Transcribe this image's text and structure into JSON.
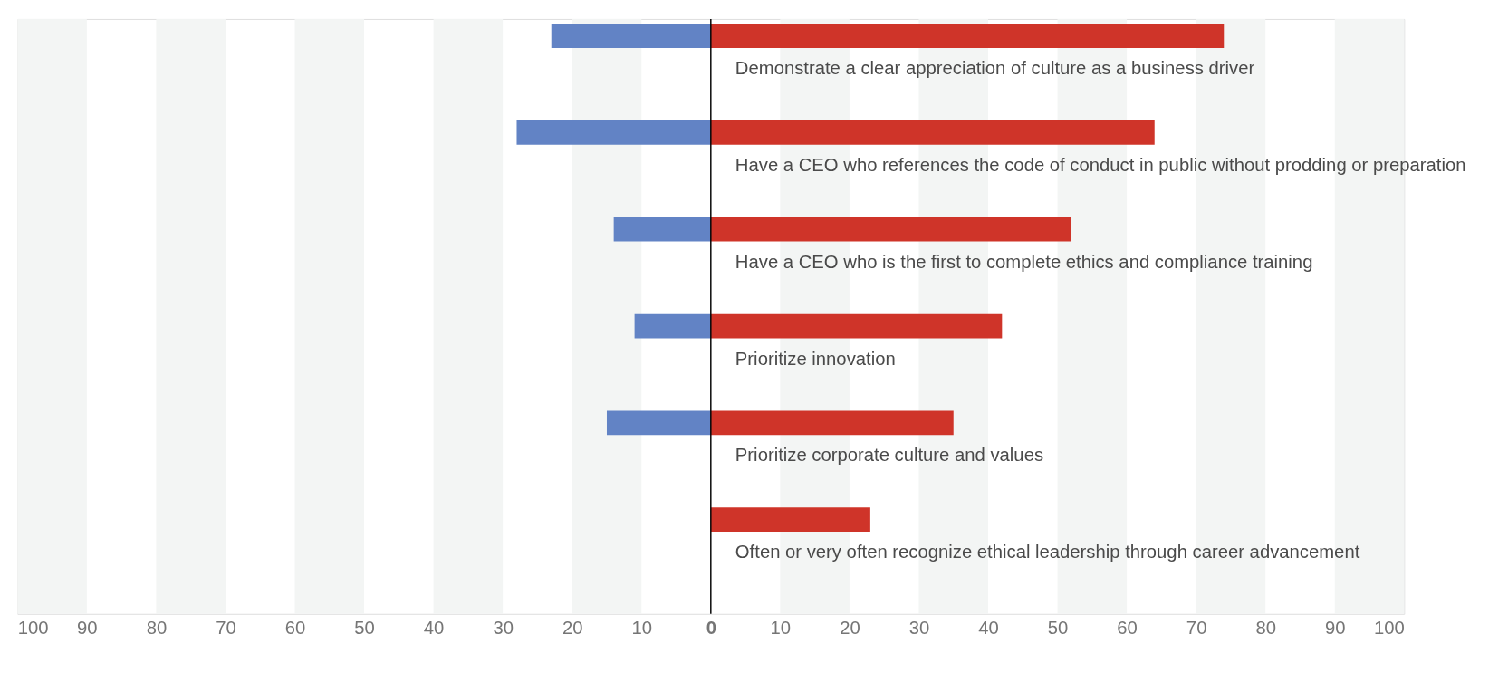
{
  "chart_data": {
    "type": "bar",
    "orientation": "horizontal",
    "categories": [
      "Demonstrate a clear appreciation of culture as a business driver",
      "Have a CEO who references the code of conduct in public without prodding or preparation",
      "Have a CEO who is the first to complete ethics and compliance training",
      "Prioritize innovation",
      "Prioritize corporate culture and values",
      "Often or very often recognize ethical leadership through career advancement"
    ],
    "series": [
      {
        "color": "#cf3429",
        "values": [
          74,
          64,
          52,
          42,
          35,
          23
        ]
      },
      {
        "color": "#6283c5",
        "values": [
          -23,
          -28,
          -14,
          -11,
          -15,
          null
        ]
      }
    ],
    "xlim": [
      -100,
      100
    ],
    "xticks": [
      {
        "value": -100,
        "label": "100"
      },
      {
        "value": -90,
        "label": "90"
      },
      {
        "value": -80,
        "label": "80"
      },
      {
        "value": -70,
        "label": "70"
      },
      {
        "value": -60,
        "label": "60"
      },
      {
        "value": -50,
        "label": "50"
      },
      {
        "value": -40,
        "label": "40"
      },
      {
        "value": -30,
        "label": "30"
      },
      {
        "value": -20,
        "label": "20"
      },
      {
        "value": -10,
        "label": "10"
      },
      0,
      10,
      20,
      30,
      40,
      50,
      60,
      70,
      80,
      90,
      100
    ],
    "ref_lines": [
      {
        "axis": "x",
        "value": 0,
        "color": "#000000"
      }
    ],
    "bands": [
      {
        "axis": "x",
        "from": -100,
        "to": -90,
        "color": "#f3f5f4"
      },
      {
        "axis": "x",
        "from": -80,
        "to": -70,
        "color": "#f3f5f4"
      },
      {
        "axis": "x",
        "from": -60,
        "to": -50,
        "color": "#f3f5f4"
      },
      {
        "axis": "x",
        "from": -40,
        "to": -30,
        "color": "#f3f5f4"
      },
      {
        "axis": "x",
        "from": -20,
        "to": -10,
        "color": "#f3f5f4"
      },
      {
        "axis": "x",
        "from": 10,
        "to": 20,
        "color": "#f3f5f4"
      },
      {
        "axis": "x",
        "from": 30,
        "to": 40,
        "color": "#f3f5f4"
      },
      {
        "axis": "x",
        "from": 50,
        "to": 60,
        "color": "#f3f5f4"
      },
      {
        "axis": "x",
        "from": 70,
        "to": 80,
        "color": "#f3f5f4"
      },
      {
        "axis": "x",
        "from": 90,
        "to": 100,
        "color": "#f3f5f4"
      }
    ],
    "stacked": true,
    "grid": false
  }
}
